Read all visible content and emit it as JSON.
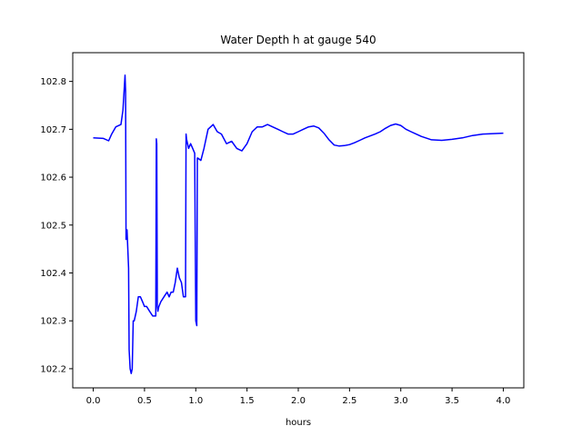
{
  "chart_data": {
    "type": "line",
    "title": "Water Depth h at gauge 540",
    "xlabel": "hours",
    "ylabel": "",
    "xlim": [
      -0.2,
      4.2
    ],
    "ylim": [
      102.16,
      102.86
    ],
    "x_ticks": [
      0.0,
      0.5,
      1.0,
      1.5,
      2.0,
      2.5,
      3.0,
      3.5,
      4.0
    ],
    "x_tick_labels": [
      "0.0",
      "0.5",
      "1.0",
      "1.5",
      "2.0",
      "2.5",
      "3.0",
      "3.5",
      "4.0"
    ],
    "y_ticks": [
      102.2,
      102.3,
      102.4,
      102.5,
      102.6,
      102.7,
      102.8
    ],
    "y_tick_labels": [
      "102.2",
      "102.3",
      "102.4",
      "102.5",
      "102.6",
      "102.7",
      "102.8"
    ],
    "grid": false,
    "series": [
      {
        "name": "",
        "color": "#0000ff",
        "x": [
          0.0,
          0.1,
          0.15,
          0.18,
          0.22,
          0.27,
          0.29,
          0.31,
          0.315,
          0.32,
          0.33,
          0.345,
          0.35,
          0.36,
          0.37,
          0.38,
          0.39,
          0.4,
          0.42,
          0.44,
          0.46,
          0.48,
          0.5,
          0.52,
          0.55,
          0.58,
          0.6,
          0.61,
          0.615,
          0.62,
          0.625,
          0.63,
          0.64,
          0.66,
          0.69,
          0.72,
          0.74,
          0.76,
          0.78,
          0.8,
          0.82,
          0.84,
          0.86,
          0.88,
          0.9,
          0.905,
          0.91,
          0.93,
          0.95,
          0.97,
          0.99,
          1.0,
          1.01,
          1.015,
          1.02,
          1.05,
          1.08,
          1.12,
          1.17,
          1.21,
          1.25,
          1.3,
          1.35,
          1.4,
          1.45,
          1.5,
          1.55,
          1.6,
          1.65,
          1.7,
          1.75,
          1.8,
          1.85,
          1.9,
          1.95,
          2.0,
          2.05,
          2.1,
          2.15,
          2.2,
          2.25,
          2.3,
          2.35,
          2.4,
          2.45,
          2.5,
          2.55,
          2.6,
          2.65,
          2.7,
          2.75,
          2.8,
          2.85,
          2.9,
          2.95,
          3.0,
          3.05,
          3.1,
          3.15,
          3.2,
          3.3,
          3.4,
          3.5,
          3.6,
          3.7,
          3.8,
          3.9,
          4.0
        ],
        "y": [
          102.682,
          102.681,
          102.676,
          102.69,
          102.705,
          102.71,
          102.74,
          102.813,
          102.78,
          102.47,
          102.49,
          102.41,
          102.24,
          102.2,
          102.19,
          102.2,
          102.3,
          102.3,
          102.32,
          102.35,
          102.35,
          102.34,
          102.33,
          102.33,
          102.32,
          102.31,
          102.31,
          102.31,
          102.68,
          102.67,
          102.33,
          102.32,
          102.33,
          102.34,
          102.35,
          102.36,
          102.35,
          102.36,
          102.36,
          102.38,
          102.41,
          102.39,
          102.38,
          102.35,
          102.35,
          102.69,
          102.68,
          102.66,
          102.67,
          102.66,
          102.65,
          102.3,
          102.29,
          102.64,
          102.64,
          102.635,
          102.66,
          102.7,
          102.71,
          102.695,
          102.69,
          102.67,
          102.675,
          102.66,
          102.655,
          102.67,
          102.695,
          102.705,
          102.705,
          102.71,
          102.705,
          102.7,
          102.695,
          102.69,
          102.69,
          102.695,
          102.7,
          102.705,
          102.707,
          102.703,
          102.692,
          102.678,
          102.667,
          102.665,
          102.666,
          102.668,
          102.672,
          102.677,
          102.682,
          102.686,
          102.69,
          102.695,
          102.702,
          102.708,
          102.711,
          102.708,
          102.7,
          102.695,
          102.69,
          102.685,
          102.678,
          102.677,
          102.679,
          102.682,
          102.687,
          102.69,
          102.691,
          102.692
        ]
      }
    ]
  }
}
